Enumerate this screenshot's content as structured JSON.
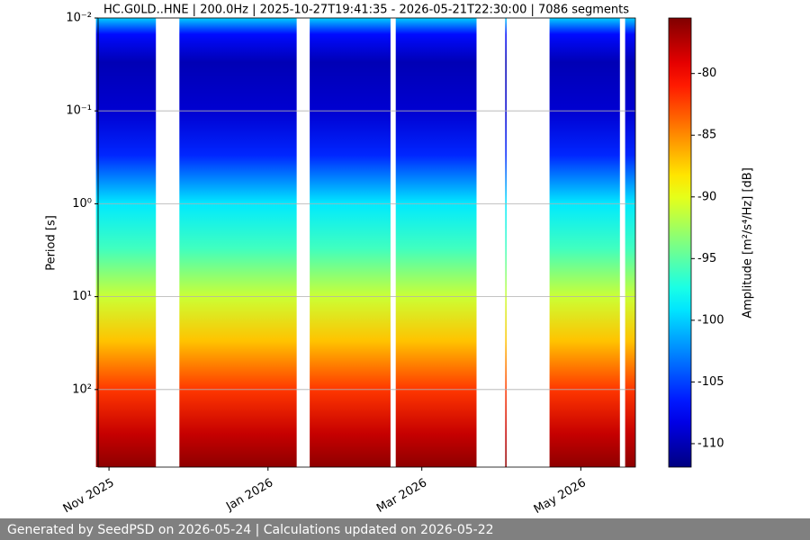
{
  "chart_data": {
    "type": "spectrogram",
    "title": "HC.G0LD..HNE | 200.0Hz | 2025-10-27T19:41:35 - 2026-05-21T22:30:00 | 7086 segments",
    "ylabel": "Period [s]",
    "colorbar_label": "Amplitude [m²/s⁴/Hz] [dB]",
    "footer": "Generated by SeedPSD on 2026-05-24 | Calculations updated on 2026-05-22",
    "xlim": [
      "2025-10-27T19:41:35",
      "2026-05-21T22:30:00"
    ],
    "xticks": [
      {
        "value": "2025-11-01",
        "label": "Nov 2025"
      },
      {
        "value": "2026-01-01",
        "label": "Jan 2026"
      },
      {
        "value": "2026-03-01",
        "label": "Mar 2026"
      },
      {
        "value": "2026-05-01",
        "label": "May 2026"
      }
    ],
    "ylim": [
      0.01,
      684
    ],
    "ylog": true,
    "yinverted": true,
    "yticks": [
      {
        "value": 0.01,
        "label": "10⁻²"
      },
      {
        "value": 0.1,
        "label": "10⁻¹"
      },
      {
        "value": 1,
        "label": "10⁰"
      },
      {
        "value": 10,
        "label": "10¹"
      },
      {
        "value": 100,
        "label": "10²"
      }
    ],
    "grid": true,
    "intervals": [
      [
        "2025-10-27",
        "2025-11-19"
      ],
      [
        "2025-11-28",
        "2026-01-12"
      ],
      [
        "2026-01-17",
        "2026-02-17"
      ],
      [
        "2026-02-19",
        "2026-03-22"
      ],
      [
        "2026-04-02",
        "2026-04-02"
      ],
      [
        "2026-04-19",
        "2026-05-16"
      ],
      [
        "2026-05-18",
        "2026-05-22"
      ]
    ],
    "profile": {
      "period": [
        0.01,
        0.015,
        0.03,
        0.1,
        0.3,
        1,
        3,
        10,
        30,
        100,
        300,
        684
      ],
      "amplitude": [
        -100,
        -107,
        -110,
        -109,
        -106,
        -99,
        -96,
        -91,
        -87,
        -82,
        -78,
        -76
      ]
    },
    "colormap": "jet",
    "clim": [
      -111.9,
      -75.5
    ],
    "cticks": [
      -110,
      -105,
      -100,
      -95,
      -90,
      -85,
      -80
    ]
  }
}
